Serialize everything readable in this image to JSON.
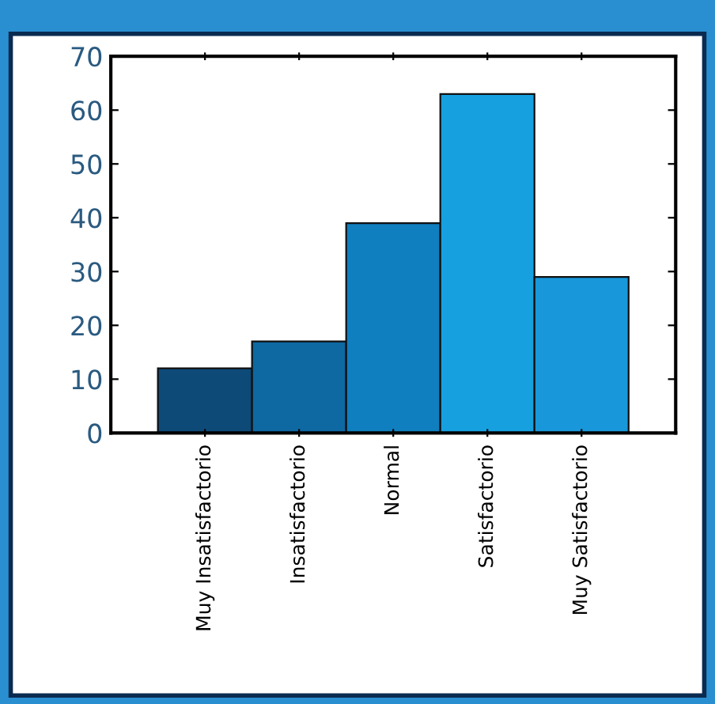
{
  "chart_data": {
    "type": "bar",
    "categories": [
      "Muy Insatisfactorio",
      "Insatisfactorio",
      "Normal",
      "Satisfactorio",
      "Muy Satisfactorio"
    ],
    "values": [
      12,
      17,
      39,
      63,
      29
    ],
    "colors": [
      "#0d4a78",
      "#0e68a2",
      "#0f7fbf",
      "#16a0e0",
      "#1898da"
    ],
    "ylim": [
      0,
      70
    ],
    "yticks": [
      0,
      10,
      20,
      30,
      40,
      50,
      60,
      70
    ],
    "grid": false
  }
}
